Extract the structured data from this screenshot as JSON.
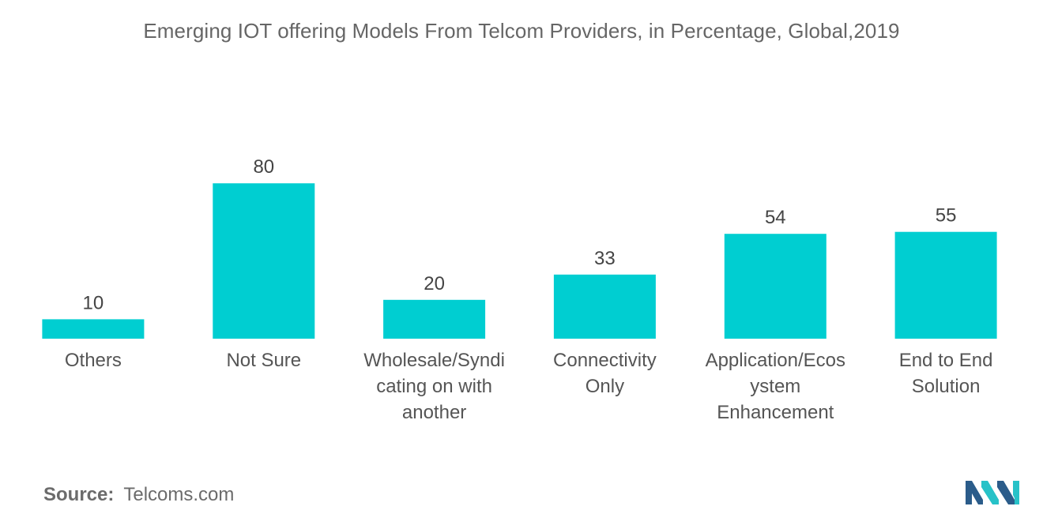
{
  "chart_data": {
    "type": "bar",
    "title": "Emerging IOT offering Models From Telcom Providers, in Percentage, Global,2019",
    "categories": [
      [
        "Others"
      ],
      [
        "Not Sure"
      ],
      [
        "Wholesale/Syndi",
        "cating on with",
        "another"
      ],
      [
        "Connectivity",
        "Only"
      ],
      [
        "Application/Ecos",
        "ystem",
        "Enhancement"
      ],
      [
        "End to End",
        "Solution"
      ]
    ],
    "values": [
      10,
      80,
      20,
      33,
      54,
      55
    ],
    "xlabel": "",
    "ylabel": "",
    "ylim": [
      0,
      100
    ],
    "grid": false,
    "legend": "none",
    "bar_color": "#00CED1"
  },
  "source": {
    "label": "Source:",
    "text": "Telcoms.com"
  },
  "logo": {
    "icon": "mordor-intelligence-logo",
    "colors": [
      "#2b5c8a",
      "#27c2c8"
    ]
  }
}
